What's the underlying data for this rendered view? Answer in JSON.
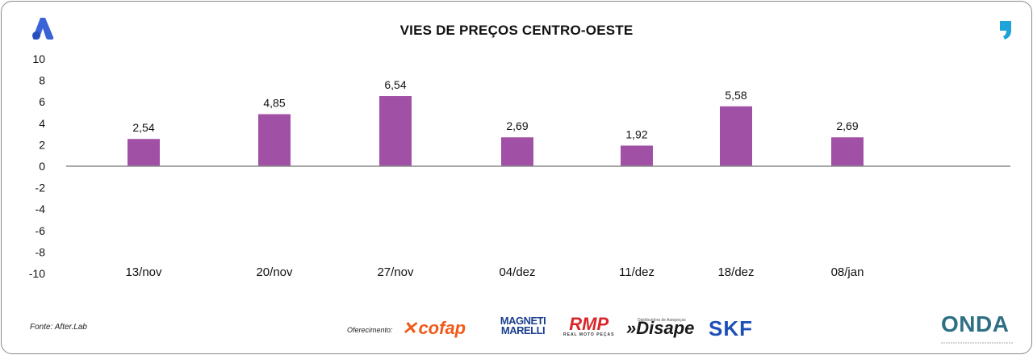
{
  "title": "VIES DE PREÇOS CENTRO-OESTE",
  "source": "Fonte: After.Lab",
  "offer_label": "Oferecimento:",
  "sponsors": {
    "cofap": "cofap",
    "magneti_marelli": [
      "MAGNETI",
      "MARELLI"
    ],
    "rmp": "RMP",
    "rmp_sub": "REAL MOTO PEÇAS",
    "disape": "Disape",
    "disape_small": "Distribuidora de Autopeças",
    "skf": "SKF"
  },
  "onda": {
    "word": "ONDA"
  },
  "colors": {
    "bar": "#a151a5",
    "axis": "#8c8c8c",
    "text": "#111111"
  },
  "icons": {
    "left": "brand-a-logo-icon",
    "right": "comma-logo-icon"
  },
  "chart_data": {
    "type": "bar",
    "title": "VIES DE PREÇOS CENTRO-OESTE",
    "categories": [
      "13/nov",
      "20/nov",
      "27/nov",
      "04/dez",
      "11/dez",
      "18/dez",
      "08/jan"
    ],
    "values": [
      2.54,
      4.85,
      6.54,
      2.69,
      1.92,
      5.58,
      2.69
    ],
    "value_labels": [
      "2,54",
      "4,85",
      "6,54",
      "2,69",
      "1,92",
      "5,58",
      "2,69"
    ],
    "y_ticks": [
      10,
      8,
      6,
      4,
      2,
      0,
      -2,
      -4,
      -6,
      -8,
      -10
    ],
    "ylim": [
      -10,
      10
    ],
    "xlabel": "",
    "ylabel": "",
    "grid": false,
    "legend": "none"
  }
}
